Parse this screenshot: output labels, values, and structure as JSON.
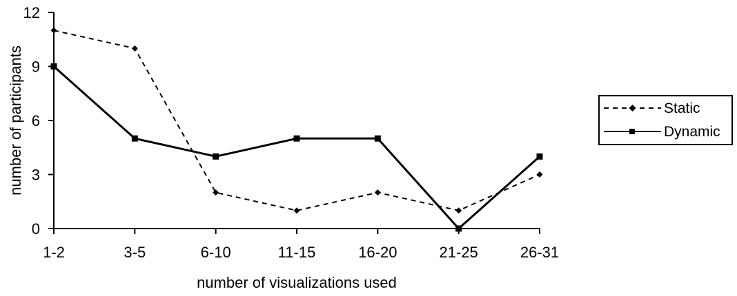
{
  "chart_data": {
    "type": "line",
    "title": "",
    "xlabel": "number of visualizations used",
    "ylabel": "number of participants",
    "categories": [
      "1-2",
      "3-5",
      "6-10",
      "11-15",
      "16-20",
      "21-25",
      "26-31"
    ],
    "y_ticks": [
      "0",
      "3",
      "6",
      "9",
      "12"
    ],
    "ylim": [
      0,
      12
    ],
    "grid": false,
    "legend_position": "right",
    "series": [
      {
        "name": "Static",
        "values": [
          11,
          10,
          2,
          1,
          2,
          1,
          3
        ],
        "line_style": "dashed",
        "marker": "diamond",
        "color": "#000000"
      },
      {
        "name": "Dynamic",
        "values": [
          9,
          5,
          4,
          5,
          5,
          0,
          4
        ],
        "line_style": "solid",
        "marker": "square",
        "color": "#000000"
      }
    ]
  }
}
